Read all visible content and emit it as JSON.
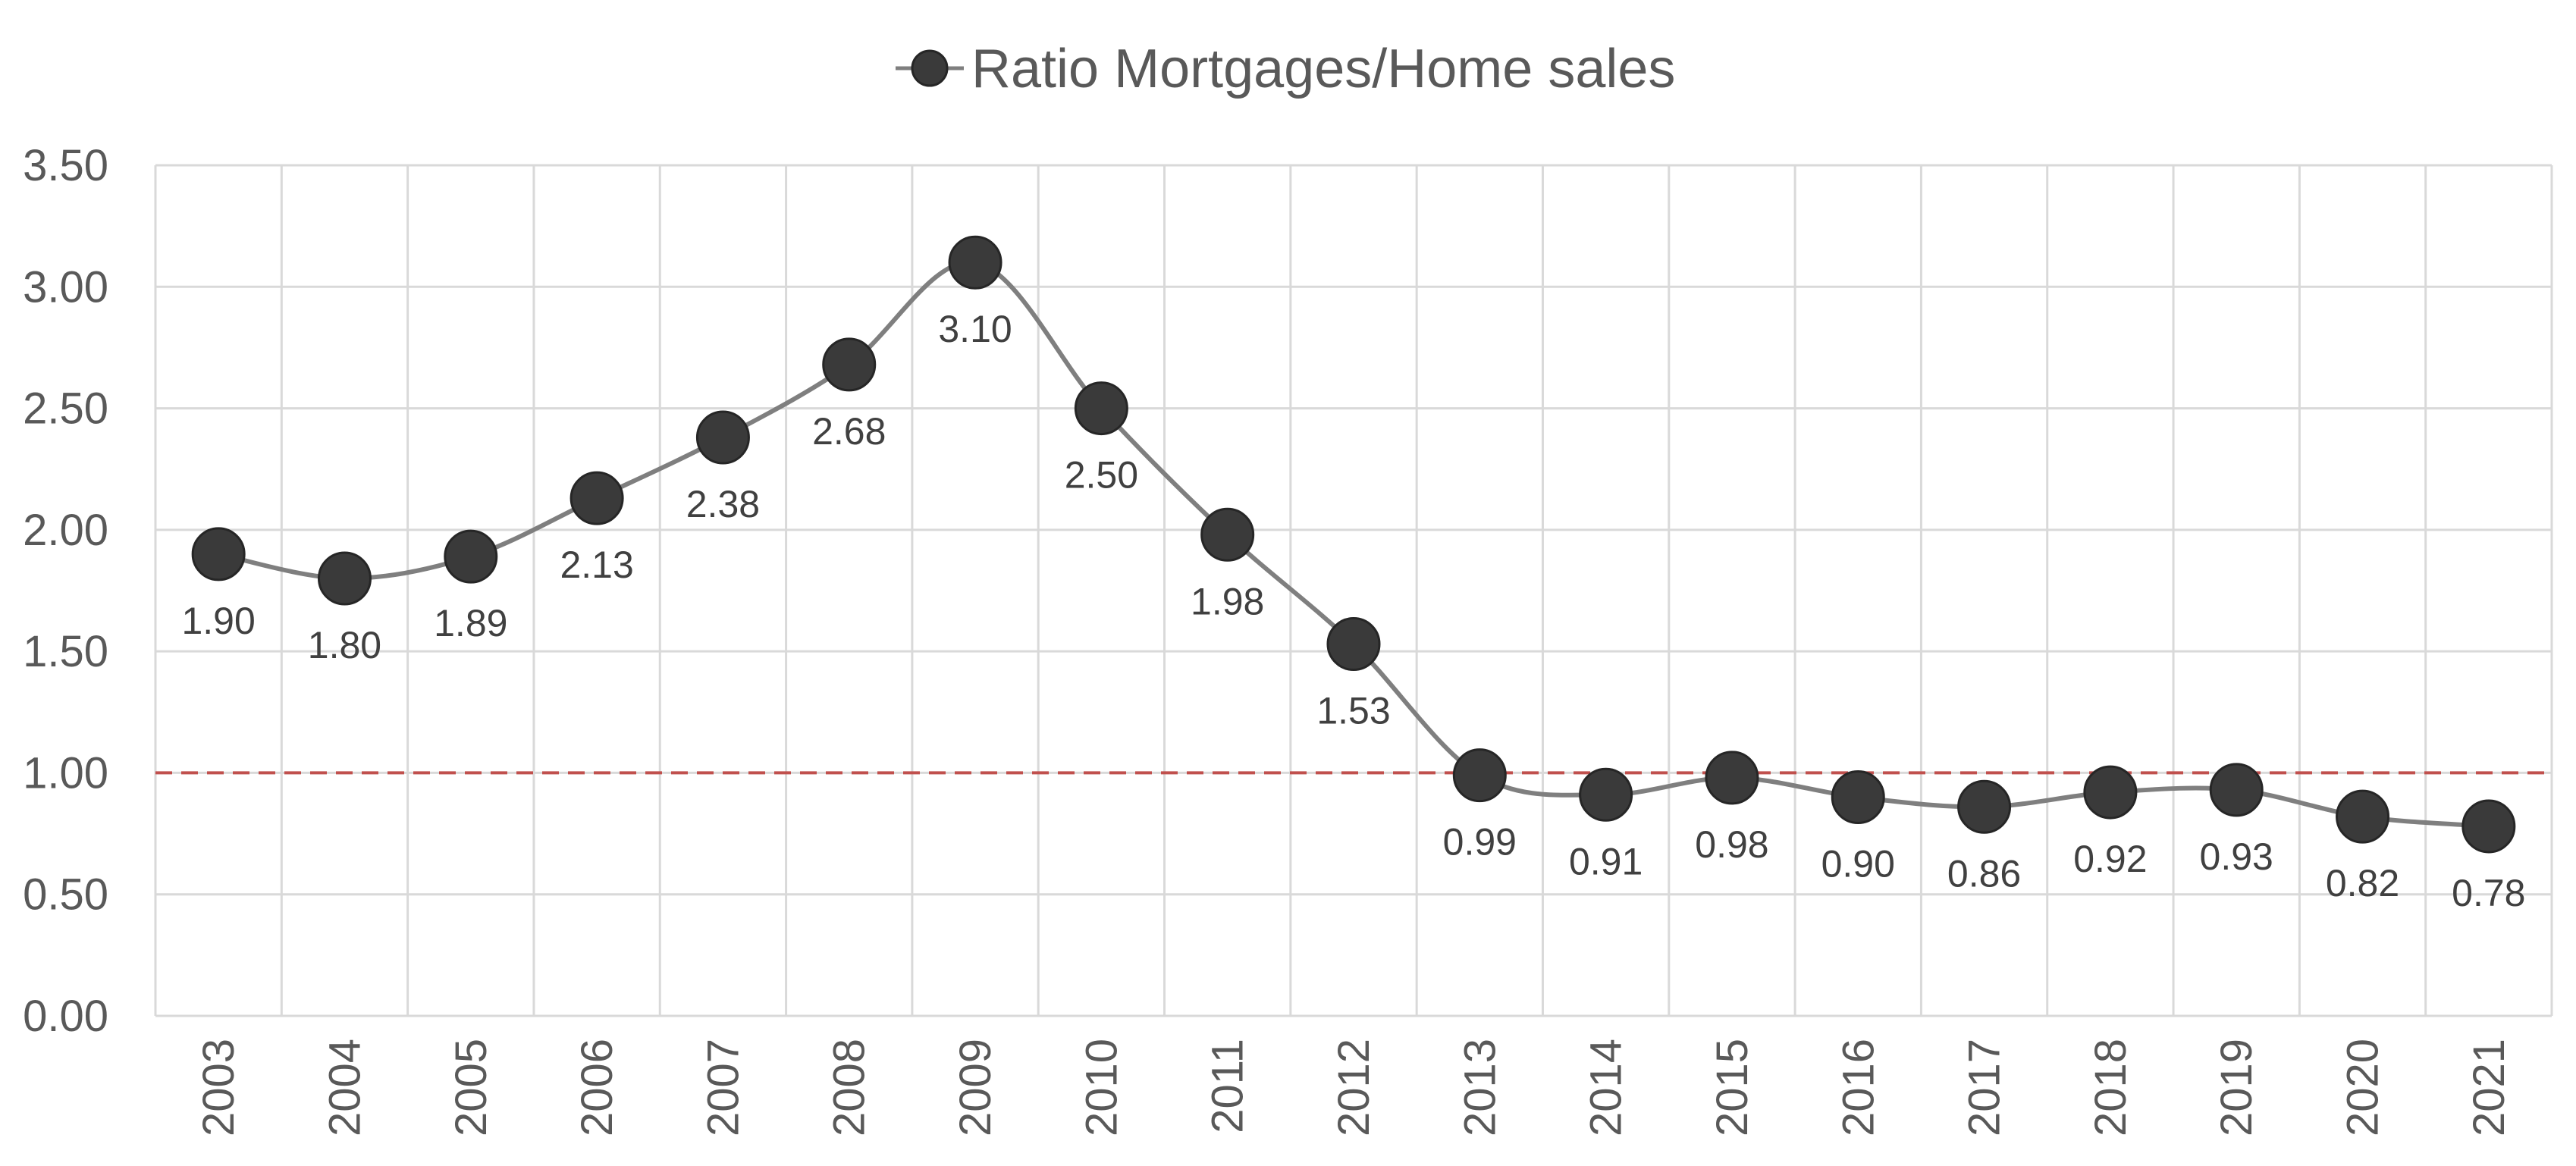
{
  "chart_data": {
    "type": "line",
    "title": "",
    "xlabel": "",
    "ylabel": "",
    "legend": {
      "position": "top",
      "entries": [
        "Ratio Mortgages/Home sales"
      ]
    },
    "categories": [
      "2003",
      "2004",
      "2005",
      "2006",
      "2007",
      "2008",
      "2009",
      "2010",
      "2011",
      "2012",
      "2013",
      "2014",
      "2015",
      "2016",
      "2017",
      "2018",
      "2019",
      "2020",
      "2021"
    ],
    "series": [
      {
        "name": "Ratio Mortgages/Home sales",
        "values": [
          1.9,
          1.8,
          1.89,
          2.13,
          2.38,
          2.68,
          3.1,
          2.5,
          1.98,
          1.53,
          0.99,
          0.91,
          0.98,
          0.9,
          0.86,
          0.92,
          0.93,
          0.82,
          0.78
        ],
        "labels": [
          "1.90",
          "1.80",
          "1.89",
          "2.13",
          "2.38",
          "2.68",
          "3.10",
          "2.50",
          "1.98",
          "1.53",
          "0.99",
          "0.91",
          "0.98",
          "0.90",
          "0.86",
          "0.92",
          "0.93",
          "0.82",
          "0.78"
        ],
        "smoothed": true,
        "line_color": "#7f7f7f",
        "marker_color": "#3a3a3a",
        "marker_edge_color": "#262626",
        "label_position": "below"
      }
    ],
    "ylim": [
      0,
      3.5
    ],
    "yticks": [
      0,
      0.5,
      1.0,
      1.5,
      2.0,
      2.5,
      3.0,
      3.5
    ],
    "ytick_labels": [
      "0.00",
      "0.50",
      "1.00",
      "1.50",
      "2.00",
      "2.50",
      "3.00",
      "3.50"
    ],
    "x_tick_rotation": -90,
    "grid": {
      "horizontal": true,
      "vertical": true,
      "color": "#d9d9d9"
    },
    "reference_line": {
      "value": 1.0,
      "style": "dashed",
      "color": "#c0504d"
    }
  }
}
